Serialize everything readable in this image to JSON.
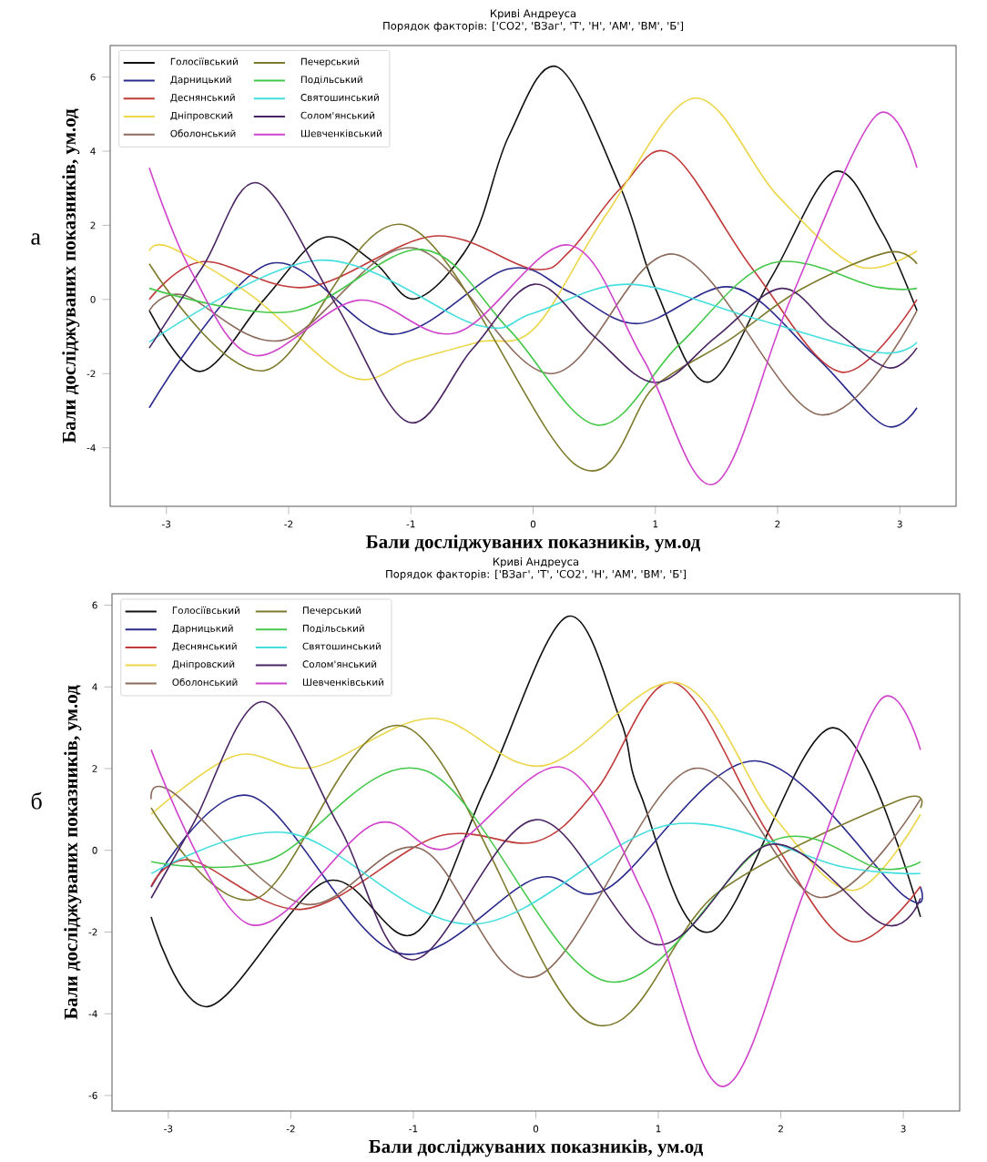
{
  "chart_data": [
    {
      "type": "line",
      "title": "Криві Андреуса",
      "subtitle": "Порядок факторів: ['CO2', 'ВЗаг', 'Т', 'Н', 'АМ', 'ВМ', 'Б']",
      "xlabel": "Бали досліджуваних показників, ум.од",
      "ylabel": "Бали досліджуваних показників, ум.од",
      "annotations": [
        "а"
      ],
      "legend": "top left",
      "xlim": [
        -3.46,
        3.46
      ],
      "ylim": [
        -5.58,
        6.85
      ],
      "xticks": [
        -3,
        -2,
        -1,
        0,
        1,
        2,
        3
      ],
      "yticks": [
        -4,
        -2,
        0,
        2,
        4,
        6
      ],
      "series": [
        {
          "name": "Голосіївський",
          "color": "#111111",
          "x": [
            -3.14,
            -2.72,
            -2.2,
            -1.72,
            -1.3,
            -0.96,
            -0.5,
            -0.2,
            0.2,
            0.71,
            1.0,
            1.43,
            1.95,
            2.46,
            2.85,
            3.14
          ],
          "values": [
            -0.3,
            -1.94,
            0.0,
            1.66,
            1.0,
            0.02,
            1.6,
            4.4,
            6.27,
            3.06,
            0.3,
            -2.23,
            0.6,
            3.44,
            1.84,
            -0.3
          ]
        },
        {
          "name": "Дарницький",
          "color": "#2a2a8c",
          "x": [
            -3.14,
            -2.16,
            -1.16,
            -0.21,
            0.3,
            0.86,
            1.63,
            2.3,
            2.87,
            3.14
          ],
          "values": [
            -2.92,
            0.96,
            -0.94,
            0.82,
            0.2,
            -0.65,
            0.33,
            -1.5,
            -3.39,
            -2.92
          ]
        },
        {
          "name": "Деснянський",
          "color": "#c03a3a",
          "x": [
            -3.14,
            -2.7,
            -1.85,
            -0.81,
            0.0,
            0.3,
            0.71,
            1.13,
            1.8,
            2.52,
            3.14
          ],
          "values": [
            0.0,
            1.02,
            0.33,
            1.71,
            0.82,
            1.3,
            2.98,
            3.93,
            0.8,
            -1.96,
            0.0
          ]
        },
        {
          "name": "Дніпровский",
          "color": "#ecd64a",
          "x": [
            -3.14,
            -2.97,
            -2.3,
            -1.5,
            -1.0,
            -0.45,
            0.01,
            0.6,
            1.32,
            2.0,
            2.65,
            3.14
          ],
          "values": [
            1.31,
            1.41,
            0.1,
            -2.08,
            -1.65,
            -1.15,
            -0.78,
            2.3,
            5.43,
            2.8,
            0.9,
            1.31
          ]
        },
        {
          "name": "Оболонський",
          "color": "#8c6b5c",
          "x": [
            -3.14,
            -2.86,
            -2.05,
            -0.98,
            0.14,
            1.16,
            2.33,
            3.14
          ],
          "values": [
            -0.3,
            0.12,
            -1.1,
            1.39,
            -2.0,
            1.22,
            -3.1,
            -0.3
          ]
        },
        {
          "name": "Печерський",
          "color": "#7d7a2c",
          "x": [
            -3.14,
            -2.2,
            -1.04,
            0.36,
            1.0,
            1.6,
            2.2,
            2.9,
            3.14
          ],
          "values": [
            0.96,
            -1.92,
            2.0,
            -4.49,
            -2.33,
            -1.1,
            0.29,
            1.27,
            0.96
          ]
        },
        {
          "name": "Подільський",
          "color": "#44c84a",
          "x": [
            -3.14,
            -1.98,
            -0.91,
            -0.2,
            0.53,
            1.2,
            1.95,
            2.82,
            3.14
          ],
          "values": [
            0.3,
            -0.33,
            1.35,
            -0.8,
            -3.39,
            -1.2,
            0.98,
            0.33,
            0.3
          ]
        },
        {
          "name": "Святошинський",
          "color": "#44dede",
          "x": [
            -3.14,
            -1.75,
            -0.45,
            0.0,
            0.78,
            1.8,
            2.82,
            3.14
          ],
          "values": [
            -1.15,
            1.06,
            -0.7,
            -0.37,
            0.41,
            -0.5,
            -1.43,
            -1.15
          ]
        },
        {
          "name": "Солом'янський",
          "color": "#4a2462",
          "x": [
            -3.14,
            -2.7,
            -2.25,
            -1.62,
            -1.02,
            -0.5,
            0.01,
            0.5,
            1.0,
            1.5,
            2.03,
            2.45,
            2.9,
            3.14
          ],
          "values": [
            -1.31,
            0.9,
            3.14,
            -0.1,
            -3.31,
            -1.35,
            0.41,
            -1.0,
            -2.24,
            -1.0,
            0.3,
            -0.78,
            -1.84,
            -1.31
          ]
        },
        {
          "name": "Шевченківський",
          "color": "#d044cc",
          "x": [
            -3.14,
            -2.8,
            -2.28,
            -1.43,
            -0.63,
            0.29,
            0.9,
            1.48,
            2.1,
            2.8,
            3.14
          ],
          "values": [
            3.55,
            0.78,
            -1.51,
            -0.02,
            -0.9,
            1.47,
            -1.6,
            -4.98,
            -0.04,
            4.94,
            3.55
          ]
        }
      ]
    },
    {
      "type": "line",
      "title": "Криві Андреуса",
      "subtitle": "Порядок факторів: ['ВЗаг', 'Т', 'CO2', 'Н', 'АМ', 'ВМ', 'Б']",
      "xlabel": "Бали досліджуваних показників, ум.од",
      "ylabel": "Бали досліджуваних показників, ум.од",
      "annotations": [
        "б"
      ],
      "legend": "top left",
      "xlim": [
        -3.46,
        3.46
      ],
      "ylim": [
        -6.38,
        6.28
      ],
      "xticks": [
        -3,
        -2,
        -1,
        0,
        1,
        2,
        3
      ],
      "yticks": [
        -6,
        -4,
        -2,
        0,
        2,
        4,
        6
      ],
      "series": [
        {
          "name": "Голосіївський",
          "color": "#111111",
          "x": [
            -3.14,
            -2.67,
            -1.71,
            -0.99,
            -0.4,
            0.25,
            0.69,
            0.85,
            1.43,
            2.42,
            3.14
          ],
          "values": [
            -1.63,
            -3.82,
            -0.76,
            -2.04,
            1.6,
            5.71,
            3.19,
            1.4,
            -1.99,
            3.0,
            -1.63
          ]
        },
        {
          "name": "Дарницький",
          "color": "#2a2a8c",
          "x": [
            -3.14,
            -2.33,
            -1.13,
            0.0,
            0.58,
            1.79,
            3.0,
            3.14
          ],
          "values": [
            -0.9,
            1.33,
            -2.51,
            -0.69,
            -0.94,
            2.19,
            -1.1,
            -0.9
          ]
        },
        {
          "name": "Деснянський",
          "color": "#c03a3a",
          "x": [
            -3.14,
            -2.82,
            -1.9,
            -0.8,
            0.0,
            0.5,
            1.13,
            1.9,
            2.56,
            3.14
          ],
          "values": [
            -0.88,
            -0.24,
            -1.44,
            0.34,
            0.21,
            1.5,
            4.1,
            0.4,
            -2.22,
            -0.88
          ]
        },
        {
          "name": "Дніпровский",
          "color": "#ecd64a",
          "x": [
            -3.14,
            -2.45,
            -1.82,
            -0.85,
            0.06,
            1.16,
            1.95,
            2.59,
            3.14
          ],
          "values": [
            0.88,
            2.32,
            2.03,
            3.23,
            2.07,
            4.1,
            0.8,
            -0.98,
            0.88
          ]
        },
        {
          "name": "Оболонський",
          "color": "#8c6b5c",
          "x": [
            -3.14,
            -2.96,
            -1.9,
            -0.95,
            0.0,
            1.27,
            2.31,
            3.14
          ],
          "values": [
            1.25,
            1.41,
            -1.31,
            0.05,
            -3.09,
            1.99,
            -1.15,
            1.25
          ]
        },
        {
          "name": "Печерський",
          "color": "#7d7a2c",
          "x": [
            -3.14,
            -2.29,
            -1.06,
            0.43,
            1.5,
            2.95,
            3.14
          ],
          "values": [
            1.04,
            -1.19,
            3.02,
            -4.2,
            -1.0,
            1.21,
            1.04
          ]
        },
        {
          "name": "Подільський",
          "color": "#44c84a",
          "x": [
            -3.14,
            -2.18,
            -0.9,
            0.58,
            1.93,
            2.81,
            3.14
          ],
          "values": [
            -0.28,
            -0.24,
            1.95,
            -3.21,
            0.23,
            -0.45,
            -0.28
          ]
        },
        {
          "name": "Святошинський",
          "color": "#44dede",
          "x": [
            -3.14,
            -2.01,
            -0.52,
            1.1,
            2.5,
            3.14
          ],
          "values": [
            -0.57,
            0.42,
            -1.81,
            0.63,
            -0.4,
            -0.57
          ]
        },
        {
          "name": "Солом'янський",
          "color": "#4a2462",
          "x": [
            -3.14,
            -2.8,
            -2.23,
            -1.6,
            -1.0,
            0.0,
            0.99,
            1.93,
            2.84,
            3.14
          ],
          "values": [
            -1.17,
            0.63,
            3.64,
            0.55,
            -2.68,
            0.75,
            -2.31,
            0.15,
            -1.81,
            -1.17
          ]
        },
        {
          "name": "Шевченківський",
          "color": "#d044cc",
          "x": [
            -3.14,
            -2.34,
            -1.32,
            -0.72,
            0.22,
            0.9,
            1.53,
            2.2,
            2.81,
            3.14
          ],
          "values": [
            2.46,
            -1.81,
            0.64,
            0.05,
            2.03,
            -1.2,
            -5.78,
            -0.94,
            3.67,
            2.46
          ]
        }
      ]
    }
  ]
}
